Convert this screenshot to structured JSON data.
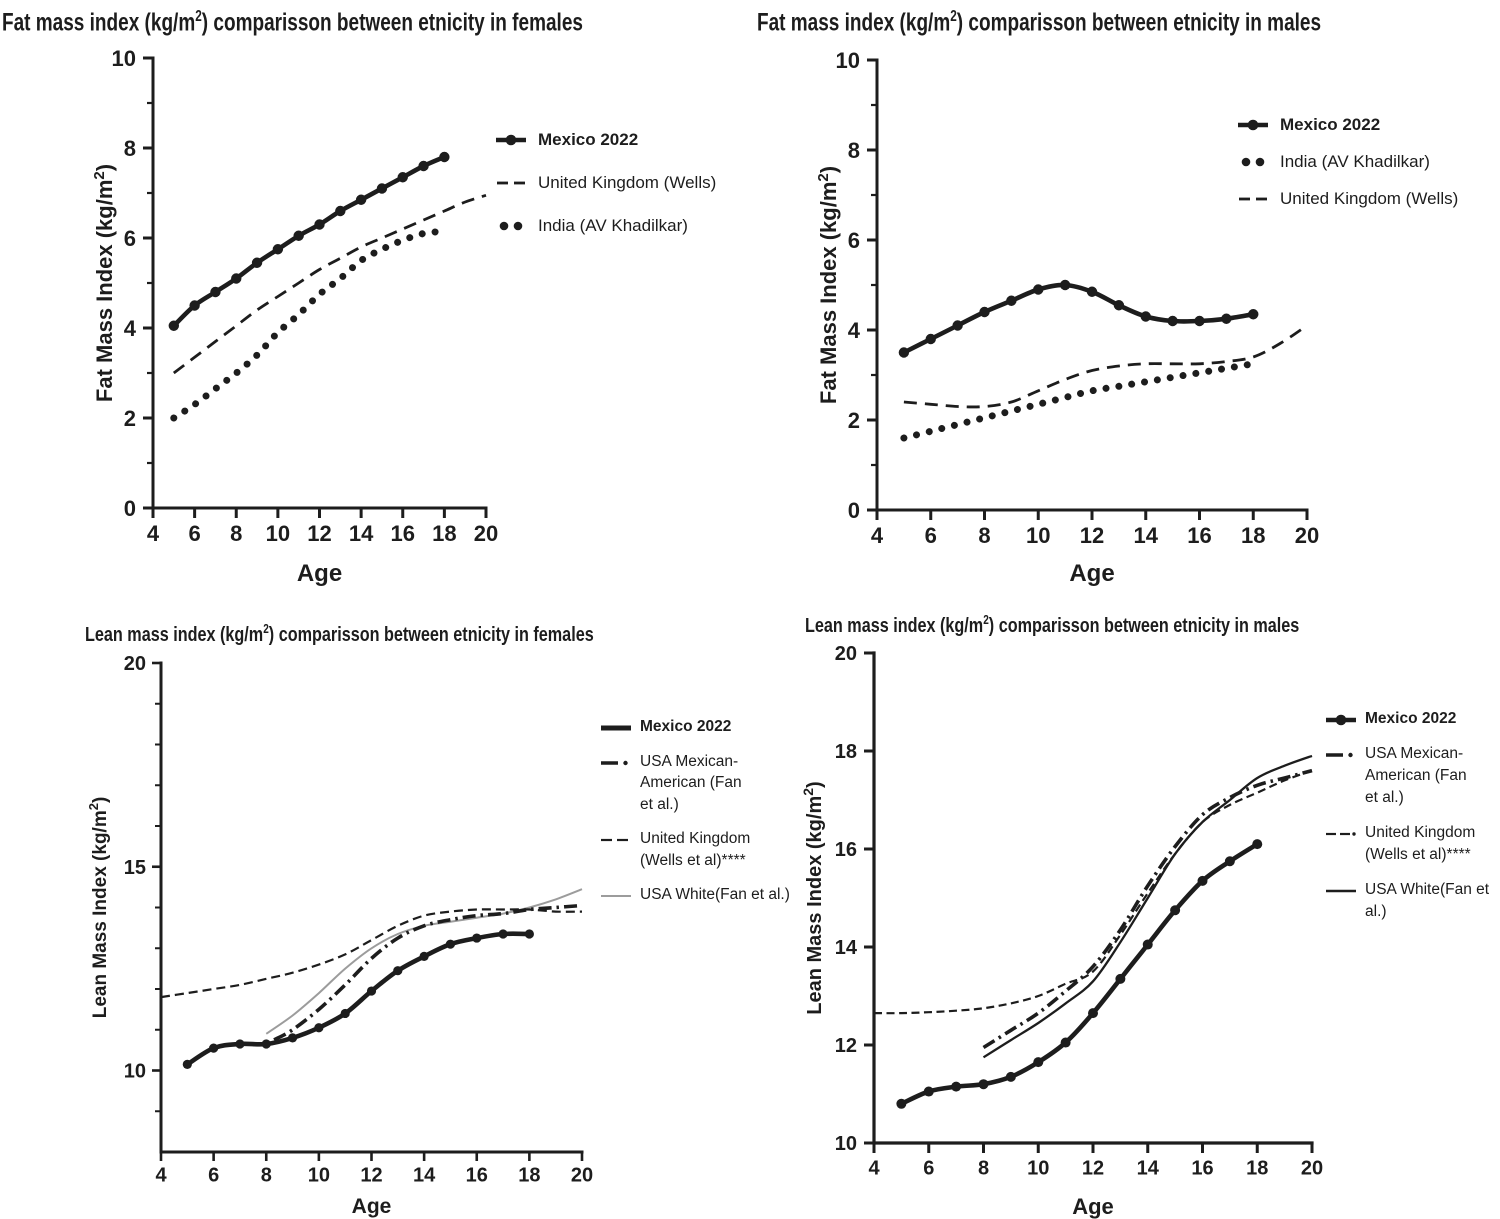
{
  "colors": {
    "ink": "#1d1d1d",
    "gray": "#9c9c9c",
    "background": "#ffffff"
  },
  "chart_data": [
    {
      "type": "line",
      "id": "fat-mass-females",
      "title_pre": "Fat mass index (kg/m",
      "title_sup": "2",
      "title_post": ") comparisson between etnicity in females",
      "xlabel": "Age",
      "ylabel_pre": "Fat Mass Index  (kg/m",
      "ylabel_sup": "2",
      "ylabel_post": ")",
      "xlim": [
        4,
        20
      ],
      "ylim": [
        0,
        10
      ],
      "xticks": [
        4,
        6,
        8,
        10,
        12,
        14,
        16,
        18,
        20
      ],
      "yticks": [
        0,
        2,
        4,
        6,
        8,
        10
      ],
      "yticks_minor": [
        1,
        3,
        5,
        7,
        9
      ],
      "legend_position": "right",
      "grid": false,
      "series": [
        {
          "name": "Mexico 2022",
          "style": "solid-marker",
          "bold_label": true,
          "label_lines": [
            "Mexico 2022"
          ],
          "x": [
            5,
            6,
            7,
            8,
            9,
            10,
            11,
            12,
            13,
            14,
            15,
            16,
            17,
            18
          ],
          "y": [
            4.05,
            4.5,
            4.8,
            5.1,
            5.45,
            5.75,
            6.05,
            6.3,
            6.6,
            6.85,
            7.1,
            7.35,
            7.6,
            7.8
          ]
        },
        {
          "name": "United Kingdom (Wells)",
          "style": "dashed",
          "bold_label": false,
          "label_lines": [
            "United Kingdom (Wells)"
          ],
          "x": [
            5,
            6,
            7,
            8,
            9,
            10,
            11,
            12,
            13,
            14,
            15,
            16,
            17,
            18,
            19,
            20
          ],
          "y": [
            3.0,
            3.35,
            3.7,
            4.05,
            4.4,
            4.7,
            5.0,
            5.3,
            5.55,
            5.8,
            6.0,
            6.2,
            6.4,
            6.6,
            6.8,
            6.95
          ]
        },
        {
          "name": "India (AV Khadilkar)",
          "style": "dotted",
          "bold_label": false,
          "label_lines": [
            "India (AV Khadilkar)"
          ],
          "x": [
            5,
            6,
            7,
            8,
            9,
            10,
            11,
            12,
            13,
            14,
            15,
            16,
            17,
            18
          ],
          "y": [
            2.0,
            2.3,
            2.65,
            3.0,
            3.4,
            3.9,
            4.3,
            4.75,
            5.1,
            5.5,
            5.75,
            5.95,
            6.1,
            6.15
          ]
        }
      ]
    },
    {
      "type": "line",
      "id": "fat-mass-males",
      "title_pre": "Fat mass index (kg/m",
      "title_sup": "2",
      "title_post": ") comparisson between etnicity in males",
      "xlabel": "Age",
      "ylabel_pre": "Fat Mass Index  (kg/m",
      "ylabel_sup": "2",
      "ylabel_post": ")",
      "xlim": [
        4,
        20
      ],
      "ylim": [
        0,
        10
      ],
      "xticks": [
        4,
        6,
        8,
        10,
        12,
        14,
        16,
        18,
        20
      ],
      "yticks": [
        0,
        2,
        4,
        6,
        8,
        10
      ],
      "yticks_minor": [
        1,
        3,
        5,
        7,
        9
      ],
      "legend_position": "right",
      "grid": false,
      "series": [
        {
          "name": "Mexico 2022",
          "style": "solid-marker",
          "bold_label": true,
          "label_lines": [
            "Mexico 2022"
          ],
          "x": [
            5,
            6,
            7,
            8,
            9,
            10,
            11,
            12,
            13,
            14,
            15,
            16,
            17,
            18
          ],
          "y": [
            3.5,
            3.8,
            4.1,
            4.4,
            4.65,
            4.9,
            5.0,
            4.85,
            4.55,
            4.3,
            4.2,
            4.2,
            4.25,
            4.35
          ]
        },
        {
          "name": "India (AV Khadilkar)",
          "style": "dotted",
          "bold_label": false,
          "label_lines": [
            "India (AV Khadilkar)"
          ],
          "x": [
            5,
            6,
            7,
            8,
            9,
            10,
            11,
            12,
            13,
            14,
            15,
            16,
            17,
            18
          ],
          "y": [
            1.6,
            1.75,
            1.9,
            2.05,
            2.2,
            2.35,
            2.5,
            2.65,
            2.75,
            2.85,
            2.95,
            3.05,
            3.15,
            3.25
          ]
        },
        {
          "name": "United Kingdom (Wells)",
          "style": "dashed",
          "bold_label": false,
          "label_lines": [
            "United Kingdom (Wells)"
          ],
          "x": [
            5,
            6,
            7,
            8,
            9,
            10,
            11,
            12,
            13,
            14,
            15,
            16,
            17,
            18,
            19,
            20
          ],
          "y": [
            2.4,
            2.35,
            2.3,
            2.3,
            2.4,
            2.65,
            2.9,
            3.1,
            3.2,
            3.25,
            3.25,
            3.25,
            3.3,
            3.4,
            3.7,
            4.1
          ]
        }
      ]
    },
    {
      "type": "line",
      "id": "lean-mass-females",
      "title_pre": "Lean mass index (kg/m",
      "title_sup": "2",
      "title_post": ") comparisson between etnicity in females",
      "xlabel": "Age",
      "ylabel_pre": "Lean Mass Index  (kg/m",
      "ylabel_sup": "2",
      "ylabel_post": ")",
      "xlim": [
        4,
        20
      ],
      "ylim": [
        8,
        20
      ],
      "xticks": [
        4,
        6,
        8,
        10,
        12,
        14,
        16,
        18,
        20
      ],
      "yticks": [
        10,
        15,
        20
      ],
      "yticks_minor": [
        9,
        11,
        12,
        13,
        14,
        16,
        17,
        18,
        19
      ],
      "legend_position": "right",
      "grid": false,
      "series": [
        {
          "name": "Mexico 2022",
          "style": "solid-marker",
          "swatch": "solid-thick",
          "bold_label": true,
          "label_lines": [
            "Mexico 2022"
          ],
          "x": [
            5,
            6,
            7,
            8,
            9,
            10,
            11,
            12,
            13,
            14,
            15,
            16,
            17,
            18
          ],
          "y": [
            10.15,
            10.55,
            10.65,
            10.65,
            10.8,
            11.05,
            11.4,
            11.95,
            12.45,
            12.8,
            13.1,
            13.25,
            13.35,
            13.35
          ]
        },
        {
          "name": "USA Mexican-American (Fan et al.)",
          "style": "dashdot",
          "bold_label": false,
          "label_lines": [
            "USA Mexican-",
            "American (Fan",
            "et al.)"
          ],
          "x": [
            8.3,
            9,
            10,
            11,
            12,
            13,
            14,
            15,
            16,
            17,
            18,
            19,
            20
          ],
          "y": [
            10.75,
            11.0,
            11.5,
            12.1,
            12.75,
            13.25,
            13.55,
            13.7,
            13.8,
            13.85,
            13.95,
            14.0,
            14.05
          ]
        },
        {
          "name": "United Kingdom (Wells et al)****",
          "style": "fine-dashed",
          "bold_label": false,
          "label_lines": [
            "United Kingdom",
            "(Wells et al)****"
          ],
          "x": [
            4,
            5,
            6,
            7,
            8,
            9,
            10,
            11,
            12,
            13,
            14,
            15,
            16,
            17,
            18,
            19,
            20
          ],
          "y": [
            11.8,
            11.9,
            12.0,
            12.1,
            12.25,
            12.4,
            12.6,
            12.85,
            13.2,
            13.55,
            13.8,
            13.9,
            13.95,
            13.95,
            13.95,
            13.9,
            13.9
          ]
        },
        {
          "name": "USA White(Fan et al.)",
          "style": "gray-solid",
          "bold_label": false,
          "label_lines": [
            "USA White(Fan et al.)"
          ],
          "x": [
            8,
            9,
            10,
            11,
            12,
            13,
            14,
            15,
            16,
            17,
            18,
            19,
            20
          ],
          "y": [
            10.9,
            11.35,
            11.9,
            12.5,
            13.0,
            13.35,
            13.55,
            13.65,
            13.75,
            13.85,
            14.0,
            14.2,
            14.45
          ]
        }
      ]
    },
    {
      "type": "line",
      "id": "lean-mass-males",
      "title_pre": "Lean mass index (kg/m",
      "title_sup": "2",
      "title_post": ") comparisson between etnicity in males",
      "xlabel": "Age",
      "ylabel_pre": "Lean Mass Index  (kg/m",
      "ylabel_sup": "2",
      "ylabel_post": ")",
      "xlim": [
        4,
        20
      ],
      "ylim": [
        10,
        20
      ],
      "xticks": [
        4,
        6,
        8,
        10,
        12,
        14,
        16,
        18,
        20
      ],
      "yticks": [
        10,
        12,
        14,
        16,
        18,
        20
      ],
      "yticks_minor": [],
      "legend_position": "right",
      "grid": false,
      "series": [
        {
          "name": "Mexico 2022",
          "style": "solid-marker",
          "bold_label": true,
          "label_lines": [
            "Mexico 2022"
          ],
          "x": [
            5,
            6,
            7,
            8,
            9,
            10,
            11,
            12,
            13,
            14,
            15,
            16,
            17,
            18
          ],
          "y": [
            10.8,
            11.05,
            11.15,
            11.2,
            11.35,
            11.65,
            12.05,
            12.65,
            13.35,
            14.05,
            14.75,
            15.35,
            15.75,
            16.1
          ]
        },
        {
          "name": "USA Mexican-American (Fan et al.)",
          "style": "dashdot",
          "bold_label": false,
          "label_lines": [
            "USA Mexican-",
            "American (Fan",
            "et al.)"
          ],
          "x": [
            8,
            9,
            10,
            11,
            12,
            13,
            14,
            15,
            16,
            17,
            18,
            19,
            20
          ],
          "y": [
            11.95,
            12.3,
            12.65,
            13.1,
            13.6,
            14.35,
            15.25,
            16.05,
            16.7,
            17.05,
            17.3,
            17.45,
            17.6
          ]
        },
        {
          "name": "United Kingdom (Wells et al)****",
          "style": "fine-dashed-dot",
          "bold_label": false,
          "label_lines": [
            "United Kingdom",
            "(Wells et al)****"
          ],
          "x": [
            4,
            5,
            6,
            7,
            8,
            9,
            10,
            11,
            12,
            13,
            14,
            15,
            16,
            17,
            18,
            19,
            20
          ],
          "y": [
            12.65,
            12.65,
            12.67,
            12.7,
            12.75,
            12.85,
            13.0,
            13.25,
            13.5,
            14.25,
            15.1,
            15.9,
            16.55,
            16.9,
            17.15,
            17.4,
            17.6
          ]
        },
        {
          "name": "USA White(Fan et al.)",
          "style": "thin-solid",
          "bold_label": false,
          "label_lines": [
            "USA White(Fan et",
            "al.)"
          ],
          "x": [
            8,
            9,
            10,
            11,
            12,
            13,
            14,
            15,
            16,
            17,
            18,
            19,
            20
          ],
          "y": [
            11.75,
            12.1,
            12.45,
            12.85,
            13.3,
            14.1,
            15.0,
            15.9,
            16.55,
            17.0,
            17.45,
            17.7,
            17.9
          ]
        }
      ]
    }
  ]
}
